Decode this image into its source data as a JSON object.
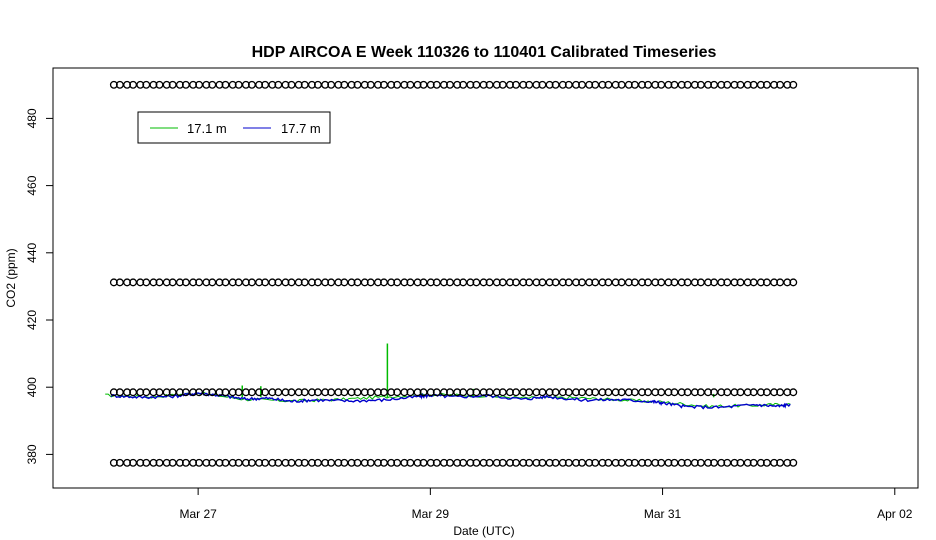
{
  "chart_data": {
    "type": "line",
    "title": "HDP AIRCOA E  Week 110326 to 110401  Calibrated Timeseries",
    "xlabel": "Date (UTC)",
    "ylabel": "CO2 (ppm)",
    "x_ticks": [
      "Mar 27",
      "Mar 29",
      "Mar 31",
      "Apr 02"
    ],
    "x_tick_days": [
      27,
      29,
      31,
      33
    ],
    "xlim_days": [
      25.75,
      33.2
    ],
    "ylim": [
      370,
      495
    ],
    "y_ticks": [
      380,
      400,
      420,
      440,
      460,
      480
    ],
    "legend_position": "top-left",
    "series": [
      {
        "name": "17.1 m",
        "color": "#00bb00",
        "x_days": [
          26.2,
          26.6,
          27.0,
          27.4,
          27.8,
          28.2,
          28.6,
          29.0,
          29.4,
          29.8,
          30.2,
          30.6,
          31.0,
          31.4,
          31.8,
          32.1
        ],
        "values": [
          397.6,
          397.1,
          398.3,
          396.4,
          395.9,
          396.3,
          397.1,
          397.8,
          397.5,
          396.8,
          396.9,
          396.3,
          395.6,
          394.3,
          394.6,
          395.0
        ],
        "spikes": [
          {
            "day": 27.38,
            "value": 400.5
          },
          {
            "day": 27.54,
            "value": 400.3
          },
          {
            "day": 28.63,
            "value": 413.0
          },
          {
            "day": 29.37,
            "value": 399.5
          },
          {
            "day": 31.44,
            "value": 398.0
          }
        ]
      },
      {
        "name": "17.7 m",
        "color": "#0000cc",
        "x_days": [
          26.25,
          26.5,
          26.8,
          27.0,
          27.2,
          27.4,
          27.6,
          27.8,
          28.0,
          28.3,
          28.6,
          28.9,
          29.0,
          29.2,
          29.5,
          29.8,
          30.0,
          30.3,
          30.6,
          30.9,
          31.0,
          31.2,
          31.5,
          31.8,
          32.0,
          32.1
        ],
        "values": [
          397.5,
          397.0,
          397.3,
          398.3,
          397.5,
          396.5,
          396.7,
          395.8,
          396.2,
          395.9,
          396.2,
          397.2,
          397.6,
          397.1,
          397.5,
          396.4,
          397.2,
          396.2,
          396.3,
          395.8,
          395.3,
          394.2,
          394.0,
          394.8,
          394.3,
          394.9
        ]
      }
    ],
    "calibration_markers": [
      {
        "value": 490.0,
        "start_day": 26.3,
        "end_day": 32.1,
        "count": 52
      },
      {
        "value": 431.2,
        "start_day": 26.3,
        "end_day": 32.1,
        "count": 52
      },
      {
        "value": 398.5,
        "start_day": 26.3,
        "end_day": 32.1,
        "count": 52
      },
      {
        "value": 377.5,
        "start_day": 26.3,
        "end_day": 32.1,
        "count": 52
      }
    ]
  }
}
